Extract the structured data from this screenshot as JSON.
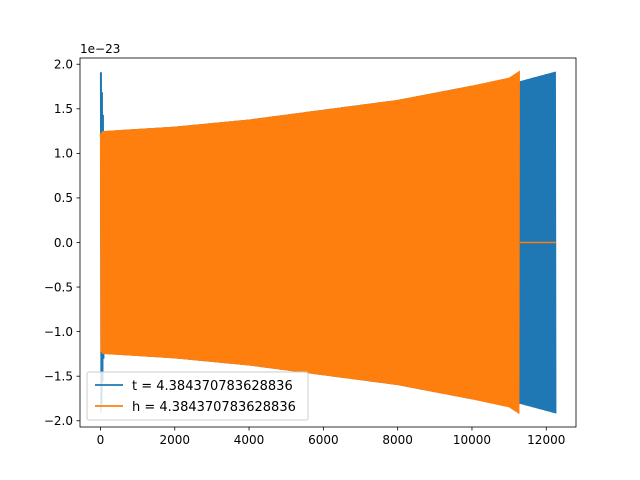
{
  "chart_data": {
    "type": "line",
    "title": "",
    "xlabel": "",
    "ylabel": "",
    "offset_text": "1e−23",
    "y_scale_factor": 1e-23,
    "xlim": [
      -550,
      12800
    ],
    "ylim": [
      -2.07,
      2.07
    ],
    "x_ticks": [
      0,
      2000,
      4000,
      6000,
      8000,
      10000,
      12000
    ],
    "x_tick_labels": [
      "0",
      "2000",
      "4000",
      "6000",
      "8000",
      "10000",
      "12000"
    ],
    "y_ticks": [
      -2.0,
      -1.5,
      -1.0,
      -0.5,
      0.0,
      0.5,
      1.0,
      1.5,
      2.0
    ],
    "y_tick_labels": [
      "−2.0",
      "−1.5",
      "−1.0",
      "−0.5",
      "0.0",
      "0.5",
      "1.0",
      "1.5",
      "2.0"
    ],
    "grid": false,
    "legend_position": "lower-left",
    "series": [
      {
        "name": "t = 4.384370783628836",
        "color": "#1f77b4",
        "kind": "oscillation-envelope",
        "x": [
          0,
          30,
          100,
          2000,
          4000,
          6000,
          8000,
          10000,
          11200,
          12270
        ],
        "upper": [
          1.91,
          1.91,
          1.25,
          1.3,
          1.38,
          1.49,
          1.6,
          1.76,
          1.8,
          1.92
        ],
        "lower": [
          -1.91,
          -1.91,
          -1.25,
          -1.3,
          -1.38,
          -1.49,
          -1.6,
          -1.76,
          -1.8,
          -1.92
        ]
      },
      {
        "name": "h = 4.384370783628836",
        "color": "#ff7f0e",
        "kind": "oscillation-envelope",
        "x": [
          0,
          50,
          2000,
          4000,
          6000,
          8000,
          10000,
          11000,
          11290
        ],
        "upper": [
          1.22,
          1.25,
          1.3,
          1.38,
          1.49,
          1.6,
          1.76,
          1.85,
          1.93
        ],
        "lower": [
          -1.22,
          -1.25,
          -1.3,
          -1.38,
          -1.49,
          -1.6,
          -1.76,
          -1.85,
          -1.93
        ],
        "tail_x": [
          11290,
          12270
        ],
        "tail_y": [
          0,
          0
        ]
      }
    ]
  }
}
